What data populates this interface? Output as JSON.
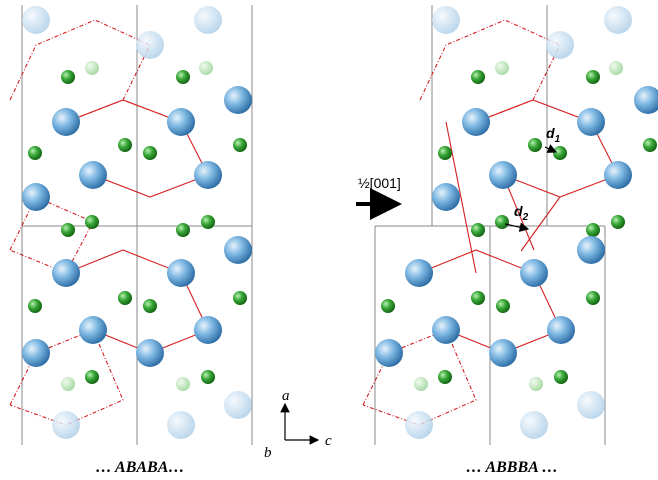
{
  "annotations": {
    "shift": "½[001]",
    "d1": {
      "symbol": "d",
      "index": "1"
    },
    "d2": {
      "symbol": "d",
      "index": "2"
    }
  },
  "axes": {
    "a": "a",
    "b": "b",
    "c": "c"
  },
  "captions": [
    "… ABABA…",
    "… ABBBA …"
  ]
}
